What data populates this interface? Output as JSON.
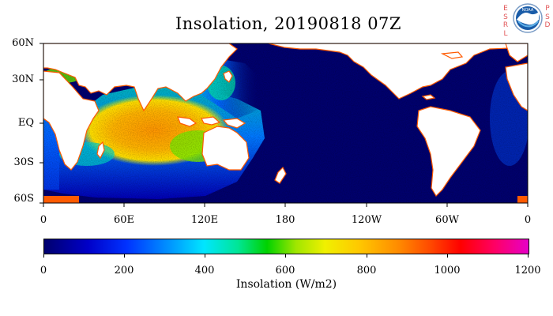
{
  "title": "Insolation, 20190818 07Z",
  "logo": {
    "left_letters": [
      "E",
      "S",
      "R",
      "L"
    ],
    "right_letters": [
      "P",
      "S",
      "D"
    ],
    "badge_text": "NOAA",
    "badge_color": "#1a5ca8"
  },
  "map": {
    "lat_labels": [
      "60N",
      "30N",
      "EQ",
      "30S",
      "60S"
    ],
    "lon_labels": [
      "0",
      "60E",
      "120E",
      "180",
      "120W",
      "60W",
      "0"
    ],
    "ocean_color": "#00006e",
    "land_color": "#ffffff",
    "coast_color": "#ff5a00"
  },
  "colorbar": {
    "labels": [
      "0",
      "200",
      "400",
      "600",
      "800",
      "1000",
      "1200"
    ],
    "title": "Insolation (W/m2)",
    "range": [
      0,
      1200
    ]
  }
}
